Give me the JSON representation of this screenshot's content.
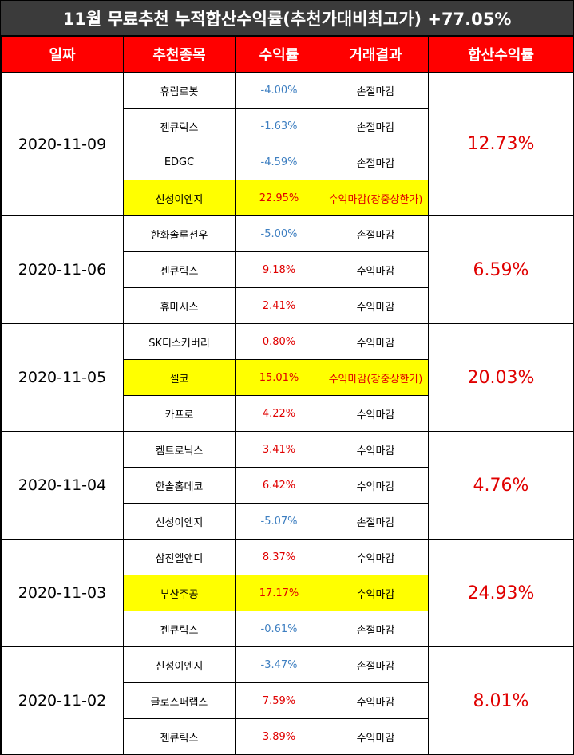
{
  "title": "11월 무료추천 누적합산수익률(추천가대비최고가) +77.05%",
  "headers": [
    "일짜",
    "추천종목",
    "수익률",
    "거래결과",
    "합산수익률"
  ],
  "colors": {
    "header_bg": "#ff0000",
    "title_bg": "#3b3b3b",
    "highlight": "#ffff00",
    "positive": "#e00000",
    "negative": "#3e7fc1"
  },
  "groups": [
    {
      "date": "2020-11-09",
      "total": "12.73%",
      "rows": [
        {
          "name": "휴림로봇",
          "return": "-4.00%",
          "result": "손절마감",
          "sign": "neg",
          "highlight": false,
          "result_red": false
        },
        {
          "name": "젠큐릭스",
          "return": "-1.63%",
          "result": "손절마감",
          "sign": "neg",
          "highlight": false,
          "result_red": false
        },
        {
          "name": "EDGC",
          "return": "-4.59%",
          "result": "손절마감",
          "sign": "neg",
          "highlight": false,
          "result_red": false
        },
        {
          "name": "신성이엔지",
          "return": "22.95%",
          "result": "수익마감(장중상한가)",
          "sign": "pos",
          "highlight": true,
          "result_red": true
        }
      ]
    },
    {
      "date": "2020-11-06",
      "total": "6.59%",
      "rows": [
        {
          "name": "한화솔루션우",
          "return": "-5.00%",
          "result": "손절마감",
          "sign": "neg",
          "highlight": false,
          "result_red": false
        },
        {
          "name": "젠큐릭스",
          "return": "9.18%",
          "result": "수익마감",
          "sign": "pos",
          "highlight": false,
          "result_red": false
        },
        {
          "name": "휴마시스",
          "return": "2.41%",
          "result": "수익마감",
          "sign": "pos",
          "highlight": false,
          "result_red": false
        }
      ]
    },
    {
      "date": "2020-11-05",
      "total": "20.03%",
      "rows": [
        {
          "name": "SK디스커버리",
          "return": "0.80%",
          "result": "수익마감",
          "sign": "pos",
          "highlight": false,
          "result_red": false
        },
        {
          "name": "셀코",
          "return": "15.01%",
          "result": "수익마감(장중상한가)",
          "sign": "pos",
          "highlight": true,
          "result_red": true
        },
        {
          "name": "카프로",
          "return": "4.22%",
          "result": "수익마감",
          "sign": "pos",
          "highlight": false,
          "result_red": false
        }
      ]
    },
    {
      "date": "2020-11-04",
      "total": "4.76%",
      "rows": [
        {
          "name": "켐트로닉스",
          "return": "3.41%",
          "result": "수익마감",
          "sign": "pos",
          "highlight": false,
          "result_red": false
        },
        {
          "name": "한솔홈데코",
          "return": "6.42%",
          "result": "수익마감",
          "sign": "pos",
          "highlight": false,
          "result_red": false
        },
        {
          "name": "신성이엔지",
          "return": "-5.07%",
          "result": "손절마감",
          "sign": "neg",
          "highlight": false,
          "result_red": false
        }
      ]
    },
    {
      "date": "2020-11-03",
      "total": "24.93%",
      "rows": [
        {
          "name": "삼진엘앤디",
          "return": "8.37%",
          "result": "수익마감",
          "sign": "pos",
          "highlight": false,
          "result_red": false
        },
        {
          "name": "부산주공",
          "return": "17.17%",
          "result": "수익마감",
          "sign": "pos",
          "highlight": true,
          "result_red": false
        },
        {
          "name": "젠큐릭스",
          "return": "-0.61%",
          "result": "손절마감",
          "sign": "neg",
          "highlight": false,
          "result_red": false
        }
      ]
    },
    {
      "date": "2020-11-02",
      "total": "8.01%",
      "rows": [
        {
          "name": "신성이엔지",
          "return": "-3.47%",
          "result": "손절마감",
          "sign": "neg",
          "highlight": false,
          "result_red": false
        },
        {
          "name": "글로스퍼랩스",
          "return": "7.59%",
          "result": "수익마감",
          "sign": "pos",
          "highlight": false,
          "result_red": false
        },
        {
          "name": "젠큐릭스",
          "return": "3.89%",
          "result": "수익마감",
          "sign": "pos",
          "highlight": false,
          "result_red": false
        }
      ]
    }
  ]
}
